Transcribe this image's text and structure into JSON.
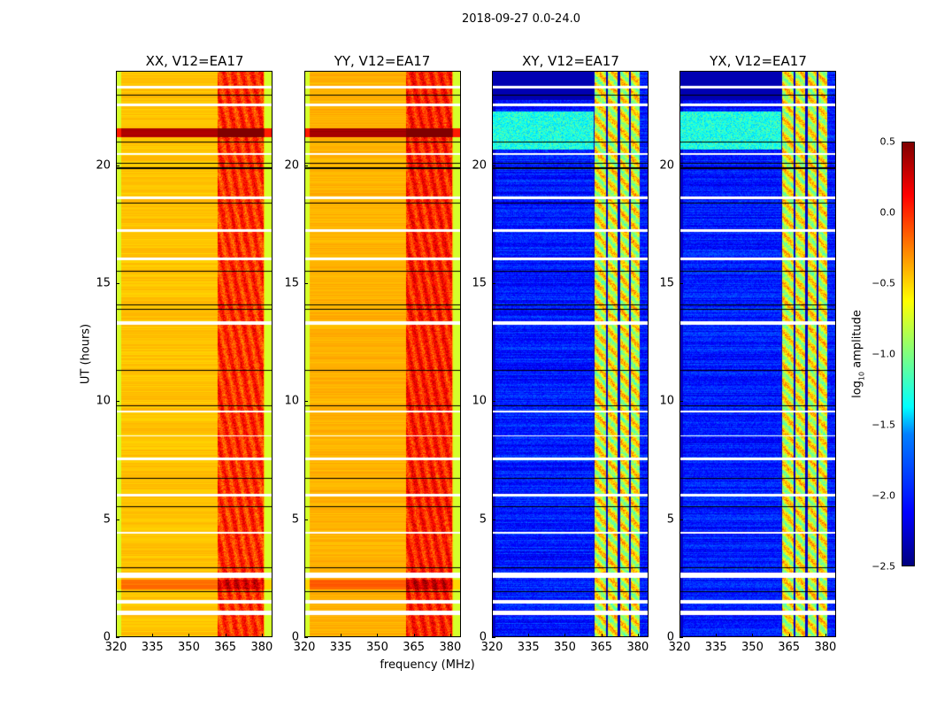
{
  "figure_title": "2018-09-27 0.0-24.0",
  "chart_data": {
    "type": "heatmap",
    "title": "2018-09-27 0.0-24.0",
    "xlabel": "frequency (MHz)",
    "ylabel": "UT (hours)",
    "xlim": [
      320,
      384.4
    ],
    "ylim": [
      0,
      24
    ],
    "xticks": [
      "320",
      "335",
      "350",
      "365",
      "380"
    ],
    "yticks": [
      "0",
      "5",
      "10",
      "15",
      "20"
    ],
    "colormap": "jet",
    "colorbar": {
      "label_main": "log",
      "label_sub": "10",
      "label_rest": " amplitude",
      "range": [
        -2.5,
        0.5
      ],
      "ticks": [
        "0.5",
        "0.0",
        "−0.5",
        "−1.0",
        "−1.5",
        "−2.0",
        "−2.5"
      ]
    },
    "panels": [
      {
        "title": "XX, V12=EA17",
        "kind": "auto",
        "base_level": -0.45,
        "band_level": -0.05,
        "edge_level": -0.75
      },
      {
        "title": "YY, V12=EA17",
        "kind": "auto",
        "base_level": -0.4,
        "band_level": 0.0,
        "edge_level": -0.75
      },
      {
        "title": "XY, V12=EA17",
        "kind": "cross",
        "base_level": -2.05,
        "band_level": -0.7,
        "edge_level": -2.3
      },
      {
        "title": "YX, V12=EA17",
        "kind": "cross",
        "base_level": -2.05,
        "band_level": -0.7,
        "edge_level": -2.3
      }
    ],
    "band_mhz": [
      362,
      381
    ],
    "cross_band_columns_mhz": [
      [
        362.5,
        367
      ],
      [
        368,
        372
      ],
      [
        373,
        376.5
      ],
      [
        377.5,
        381
      ]
    ],
    "hot_hours": [
      [
        21.2,
        21.6
      ],
      [
        2.0,
        2.4
      ]
    ],
    "flagged_hours": [
      [
        0.9,
        1.1
      ],
      [
        1.4,
        1.55
      ],
      [
        2.5,
        2.7
      ],
      [
        4.35,
        4.45
      ],
      [
        5.95,
        6.05
      ],
      [
        7.5,
        7.6
      ],
      [
        8.5,
        8.55
      ],
      [
        9.5,
        9.6
      ],
      [
        13.25,
        13.4
      ],
      [
        16.0,
        16.1
      ],
      [
        17.2,
        17.3
      ],
      [
        18.6,
        18.7
      ],
      [
        20.45,
        20.55
      ],
      [
        22.55,
        22.65
      ],
      [
        23.3,
        23.4
      ]
    ],
    "blank_lines_hours": [
      1.9,
      2.9,
      5.5,
      6.7,
      9.8,
      11.3,
      13.9,
      14.1,
      15.5,
      18.4,
      19.9,
      20.1,
      21.0,
      23.0
    ]
  }
}
